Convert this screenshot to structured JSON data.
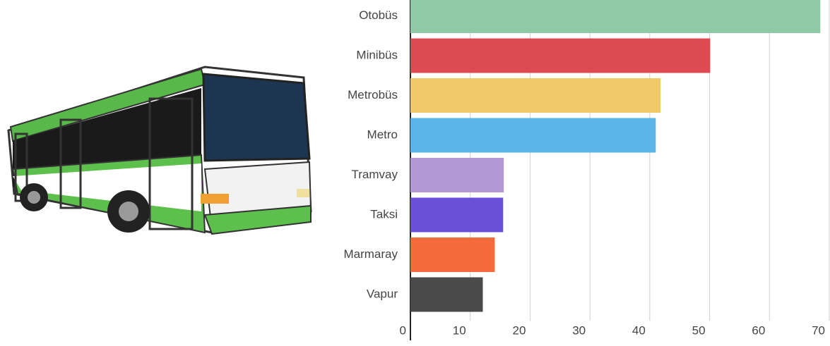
{
  "chart_data": {
    "type": "hbar",
    "categories": [
      "Otobüs",
      "Minibüs",
      "Metrobüs",
      "Metro",
      "Tramvay",
      "Taksi",
      "Marmaray",
      "Vapur"
    ],
    "values": [
      68.5,
      50.1,
      41.8,
      41,
      15.6,
      15.5,
      14.1,
      12.1
    ],
    "colors": [
      "#8fc9a6",
      "#dc4b52",
      "#f0c96a",
      "#5ab4e6",
      "#b398d6",
      "#6a4fd8",
      "#f56a3a",
      "#4a4a4a"
    ],
    "xlim": [
      0,
      70
    ],
    "xticks": [
      0,
      10,
      20,
      30,
      40,
      50,
      60,
      70
    ],
    "grid": true
  }
}
